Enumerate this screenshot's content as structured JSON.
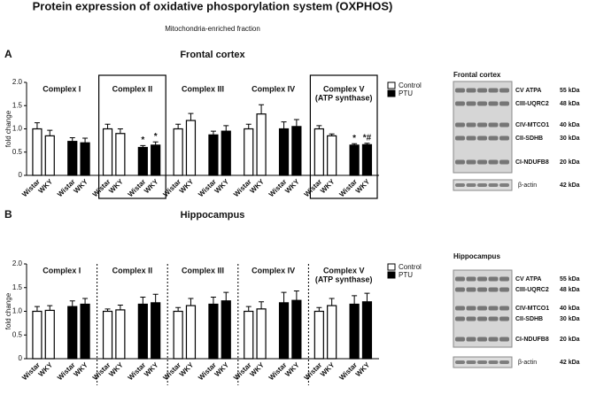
{
  "figure": {
    "title": "Protein expression of oxidative phosporylation system (OXPHOS)",
    "subtitle": "Mitochondria-enriched fraction"
  },
  "chart_data": [
    {
      "type": "bar",
      "panel": "A",
      "title": "Frontal cortex",
      "ylabel": "fold change",
      "groups": [
        [
          "Complex I"
        ],
        [
          "Complex II"
        ],
        [
          "Complex III"
        ],
        [
          "Complex IV"
        ],
        [
          "Complex V",
          "(ATP synthase)"
        ]
      ],
      "categories": [
        "Wistar",
        "WKY",
        "Wistar",
        "WKY",
        "Wistar",
        "WKY",
        "Wistar",
        "WKY",
        "Wistar",
        "WKY",
        "Wistar",
        "WKY",
        "Wistar",
        "WKY",
        "Wistar",
        "WKY",
        "Wistar",
        "WKY",
        "Wistar",
        "WKY"
      ],
      "series": [
        {
          "name": "Control",
          "color": "#ffffff",
          "values": [
            1.0,
            0.85,
            null,
            null,
            1.0,
            0.9,
            null,
            null,
            1.0,
            1.18,
            null,
            null,
            1.0,
            1.32,
            null,
            null,
            1.0,
            0.85,
            null,
            null
          ],
          "errors": [
            0.13,
            0.12,
            null,
            null,
            0.1,
            0.1,
            null,
            null,
            0.1,
            0.15,
            null,
            null,
            0.1,
            0.2,
            null,
            null,
            0.07,
            0.04,
            null,
            null
          ]
        },
        {
          "name": "PTU",
          "color": "#000000",
          "values": [
            null,
            null,
            0.73,
            0.7,
            null,
            null,
            0.6,
            0.65,
            null,
            null,
            0.87,
            0.95,
            null,
            null,
            1.0,
            1.05,
            null,
            null,
            0.65,
            0.66
          ],
          "errors": [
            null,
            null,
            0.08,
            0.1,
            null,
            null,
            0.04,
            0.07,
            null,
            null,
            0.08,
            0.12,
            null,
            null,
            0.15,
            0.15,
            null,
            null,
            0.03,
            0.03
          ],
          "annotations": [
            null,
            null,
            null,
            null,
            null,
            null,
            "*",
            "*",
            null,
            null,
            null,
            null,
            null,
            null,
            null,
            null,
            null,
            null,
            "*",
            "*#"
          ]
        }
      ],
      "ylim": [
        0,
        2.0
      ],
      "yticks": [
        0,
        0.5,
        {
          "value": 1.0,
          "label": "1.0"
        },
        1.5,
        {
          "value": 2.0,
          "label": "2.0"
        }
      ],
      "boxed": [
        false,
        true,
        false,
        false,
        true
      ]
    },
    {
      "type": "bar",
      "panel": "B",
      "title": "Hippocampus",
      "ylabel": "fold change",
      "groups": [
        [
          "Complex I"
        ],
        [
          "Complex II"
        ],
        [
          "Complex III"
        ],
        [
          "Complex IV"
        ],
        [
          "Complex V",
          "(ATP synthase)"
        ]
      ],
      "categories": [
        "Wistar",
        "WKY",
        "Wistar",
        "WKY",
        "Wistar",
        "WKY",
        "Wistar",
        "WKY",
        "Wistar",
        "WKY",
        "Wistar",
        "WKY",
        "Wistar",
        "WKY",
        "Wistar",
        "WKY",
        "Wistar",
        "WKY",
        "Wistar",
        "WKY"
      ],
      "series": [
        {
          "name": "Control",
          "color": "#ffffff",
          "values": [
            1.0,
            1.02,
            null,
            null,
            1.0,
            1.03,
            null,
            null,
            1.0,
            1.12,
            null,
            null,
            1.0,
            1.05,
            null,
            null,
            1.0,
            1.12,
            null,
            null
          ],
          "errors": [
            0.1,
            0.1,
            null,
            null,
            0.05,
            0.1,
            null,
            null,
            0.08,
            0.15,
            null,
            null,
            0.1,
            0.15,
            null,
            null,
            0.08,
            0.15,
            null,
            null
          ]
        },
        {
          "name": "PTU",
          "color": "#000000",
          "values": [
            null,
            null,
            1.1,
            1.15,
            null,
            null,
            1.15,
            1.18,
            null,
            null,
            1.15,
            1.22,
            null,
            null,
            1.18,
            1.23,
            null,
            null,
            1.15,
            1.2
          ],
          "errors": [
            null,
            null,
            0.12,
            0.12,
            null,
            null,
            0.15,
            0.18,
            null,
            null,
            0.15,
            0.18,
            null,
            null,
            0.22,
            0.2,
            null,
            null,
            0.18,
            0.18
          ]
        }
      ],
      "ylim": [
        0,
        2.0
      ],
      "yticks": [
        0,
        0.5,
        {
          "value": 1.0,
          "label": "1.0"
        },
        1.5,
        {
          "value": 2.0,
          "label": "2.0"
        }
      ],
      "separators": "dashed"
    }
  ],
  "blots": [
    {
      "title": "Frontal cortex",
      "bands": [
        {
          "name": "CV ATPA",
          "size": "55 kDa"
        },
        {
          "name": "CIII-UQRC2",
          "size": "48 kDa"
        },
        {
          "name": "CIV-MTCO1",
          "size": "40 kDa"
        },
        {
          "name": "CII-SDHB",
          "size": "30 kDa"
        },
        {
          "name": "CI-NDUFB8",
          "size": "20 kDa"
        }
      ],
      "loading": {
        "name": "β-actin",
        "size": "42 kDa"
      }
    },
    {
      "title": "Hippocampus",
      "bands": [
        {
          "name": "CV ATPA",
          "size": "55 kDa"
        },
        {
          "name": "CIII-UQRC2",
          "size": "48 kDa"
        },
        {
          "name": "CIV-MTCO1",
          "size": "40 kDa"
        },
        {
          "name": "CII-SDHB",
          "size": "30 kDa"
        },
        {
          "name": "CI-NDUFB8",
          "size": "20 kDa"
        }
      ],
      "loading": {
        "name": "β-actin",
        "size": "42 kDa"
      }
    }
  ]
}
